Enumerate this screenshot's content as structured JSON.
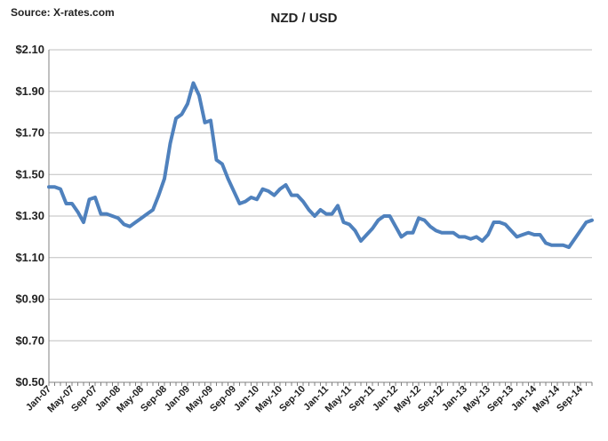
{
  "source": "Source: X-rates.com",
  "chart_data": {
    "type": "line",
    "title": "NZD / USD",
    "xlabel": "",
    "ylabel": "",
    "ylim": [
      0.5,
      2.1
    ],
    "y_ticks": [
      "$0.50",
      "$0.70",
      "$0.90",
      "$1.10",
      "$1.30",
      "$1.50",
      "$1.70",
      "$1.90",
      "$2.10"
    ],
    "y_tick_values": [
      0.5,
      0.7,
      0.9,
      1.1,
      1.3,
      1.5,
      1.7,
      1.9,
      2.1
    ],
    "x_tick_labels": [
      "Jan-07",
      "May-07",
      "Sep-07",
      "Jan-08",
      "May-08",
      "Sep-08",
      "Jan-09",
      "May-09",
      "Sep-09",
      "Jan-10",
      "May-10",
      "Sep-10",
      "Jan-11",
      "May-11",
      "Sep-11",
      "Jan-12",
      "May-12",
      "Sep-12",
      "Jan-13",
      "May-13",
      "Sep-13",
      "Jan-14",
      "May-14",
      "Sep-14"
    ],
    "grid": true,
    "legend": "none",
    "line_color": "#4f81bd",
    "series": [
      {
        "values": [
          1.44,
          1.44,
          1.43,
          1.36,
          1.36,
          1.32,
          1.27,
          1.38,
          1.39,
          1.31,
          1.31,
          1.3,
          1.29,
          1.26,
          1.25,
          1.27,
          1.29,
          1.31,
          1.33,
          1.4,
          1.48,
          1.65,
          1.77,
          1.79,
          1.84,
          1.94,
          1.88,
          1.75,
          1.76,
          1.57,
          1.55,
          1.48,
          1.42,
          1.36,
          1.37,
          1.39,
          1.38,
          1.43,
          1.42,
          1.4,
          1.43,
          1.45,
          1.4,
          1.4,
          1.37,
          1.33,
          1.3,
          1.33,
          1.31,
          1.31,
          1.35,
          1.27,
          1.26,
          1.23,
          1.18,
          1.21,
          1.24,
          1.28,
          1.3,
          1.3,
          1.25,
          1.2,
          1.22,
          1.22,
          1.29,
          1.28,
          1.25,
          1.23,
          1.22,
          1.22,
          1.22,
          1.2,
          1.2,
          1.19,
          1.2,
          1.18,
          1.21,
          1.27,
          1.27,
          1.26,
          1.23,
          1.2,
          1.21,
          1.22,
          1.21,
          1.21,
          1.17,
          1.16,
          1.16,
          1.16,
          1.15,
          1.19,
          1.23,
          1.27,
          1.28
        ]
      }
    ]
  }
}
